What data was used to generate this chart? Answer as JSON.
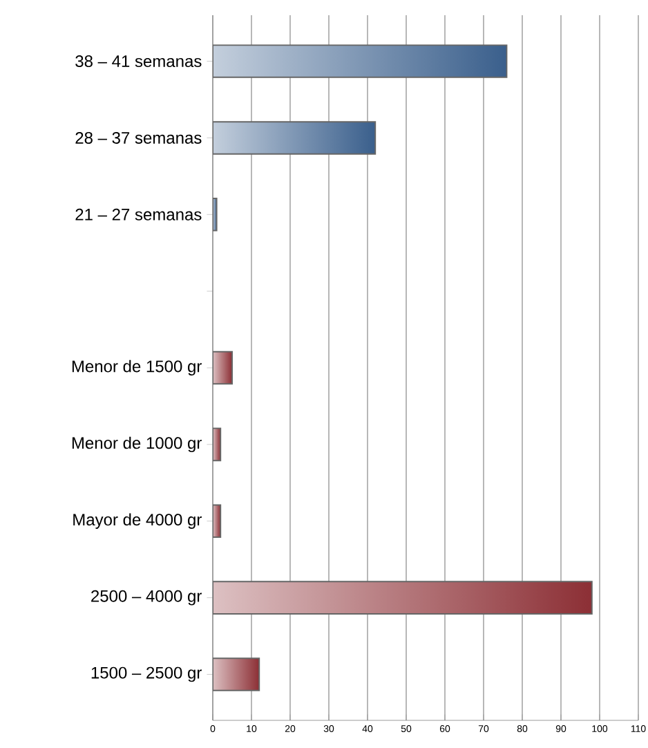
{
  "chart_data": {
    "type": "bar",
    "orientation": "horizontal",
    "categories": [
      "38 – 41 semanas",
      "28 – 37 semanas",
      "21 – 27 semanas",
      null,
      "Menor de 1500 gr",
      "Menor de 1000 gr",
      "Mayor de 4000 gr",
      "2500 – 4000 gr",
      "1500 – 2500 gr"
    ],
    "values": [
      76,
      42,
      1,
      null,
      5,
      2,
      2,
      98,
      12
    ],
    "colors": [
      "#3a5f8c",
      "#3a5f8c",
      "#3a5f8c",
      "#3a5f8c",
      "#8c2f35",
      "#8c2f35",
      "#8c2f35",
      "#8c2f35",
      "#8c2f35"
    ],
    "xlim": [
      0,
      110
    ],
    "xticks": [
      0,
      10,
      20,
      30,
      40,
      50,
      60,
      70,
      80,
      90,
      100,
      110
    ],
    "grid": "x"
  }
}
